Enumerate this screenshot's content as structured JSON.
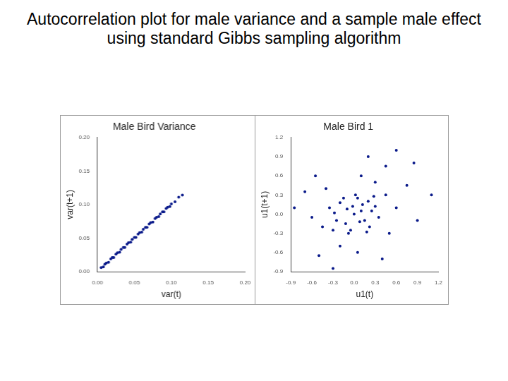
{
  "title": "Autocorrelation plot for male variance and a sample male effect using standard Gibbs sampling algorithm",
  "chart_data": [
    {
      "type": "scatter",
      "title": "Male Bird Variance",
      "x_label": "var(t)",
      "y_label": "var(t+1)",
      "color": "#0a1a8a",
      "grid": false,
      "x": [
        0.005,
        0.008,
        0.01,
        0.012,
        0.015,
        0.018,
        0.02,
        0.022,
        0.025,
        0.027,
        0.03,
        0.032,
        0.035,
        0.037,
        0.04,
        0.042,
        0.045,
        0.047,
        0.05,
        0.052,
        0.055,
        0.057,
        0.06,
        0.062,
        0.065,
        0.067,
        0.07,
        0.072,
        0.075,
        0.078,
        0.08,
        0.083,
        0.085,
        0.088,
        0.09,
        0.093,
        0.095,
        0.098,
        0.1,
        0.105,
        0.11,
        0.115
      ],
      "values": [
        0.006,
        0.007,
        0.011,
        0.013,
        0.014,
        0.019,
        0.021,
        0.021,
        0.026,
        0.028,
        0.029,
        0.033,
        0.036,
        0.036,
        0.041,
        0.043,
        0.044,
        0.048,
        0.051,
        0.051,
        0.056,
        0.058,
        0.059,
        0.063,
        0.066,
        0.066,
        0.071,
        0.073,
        0.074,
        0.079,
        0.081,
        0.082,
        0.086,
        0.089,
        0.089,
        0.094,
        0.096,
        0.097,
        0.101,
        0.104,
        0.111,
        0.114
      ],
      "xlim": [
        0,
        0.2
      ],
      "ylim": [
        0,
        0.2
      ],
      "xticks": [
        {
          "value": 0,
          "label": "0.00"
        },
        {
          "value": 0.05,
          "label": "0.05"
        },
        {
          "value": 0.1,
          "label": "0.10"
        },
        {
          "value": 0.15,
          "label": "0.15"
        },
        {
          "value": 0.2,
          "label": "0.20"
        }
      ],
      "yticks": [
        {
          "value": 0,
          "label": "0.00"
        },
        {
          "value": 0.05,
          "label": "0.05"
        },
        {
          "value": 0.1,
          "label": "0.10"
        },
        {
          "value": 0.15,
          "label": "0.15"
        },
        {
          "value": 0.2,
          "label": "0.20"
        }
      ]
    },
    {
      "type": "scatter",
      "title": "Male Bird 1",
      "x_label": "u1(t)",
      "y_label": "u1(t+1)",
      "color": "#0a1a8a",
      "grid": false,
      "x": [
        0,
        0.1,
        -0.1,
        0.15,
        -0.12,
        0.2,
        -0.2,
        0.22,
        -0.25,
        0.05,
        -0.05,
        0.25,
        -0.28,
        0.12,
        -0.15,
        0.3,
        -0.08,
        0.18,
        -0.3,
        0.02,
        0.35,
        -0.35,
        0.08,
        -0.02,
        0.28,
        0.45,
        -0.45,
        0.5,
        -0.4,
        0.3,
        -0.2,
        0.6,
        -0.6,
        0.1,
        0.05,
        0.75,
        -0.7,
        0.4,
        -0.5,
        0.9,
        -0.85,
        0.2,
        0.6,
        1.1,
        -0.3,
        0.85,
        0.45,
        -0.55
      ],
      "values": [
        0,
        0.05,
        0.08,
        -0.1,
        -0.15,
        0.2,
        0.18,
        -0.2,
        -0.1,
        0.25,
        -0.25,
        0.05,
        0.02,
        0.15,
        0.25,
        0.12,
        -0.3,
        -0.28,
        -0.25,
        0.3,
        -0.05,
        0.1,
        -0.12,
        0.12,
        0.28,
        0.3,
        -0.2,
        -0.3,
        0.4,
        0.5,
        -0.5,
        0.1,
        -0.05,
        0.6,
        -0.6,
        0.45,
        0.35,
        -0.7,
        -0.65,
        -0.1,
        0.1,
        0.9,
        1.0,
        0.3,
        -0.85,
        0.8,
        0.75,
        0.6
      ],
      "xlim": [
        -0.9,
        1.2
      ],
      "ylim": [
        -0.9,
        1.2
      ],
      "xticks": [
        -0.9,
        -0.6,
        -0.3,
        {
          "value": 0,
          "label": "0.0"
        },
        0.3,
        0.6,
        0.9,
        1.2
      ],
      "yticks": [
        -0.9,
        -0.6,
        -0.3,
        {
          "value": 0,
          "label": "0.0"
        },
        0.3,
        0.6,
        0.9,
        1.2
      ]
    }
  ]
}
